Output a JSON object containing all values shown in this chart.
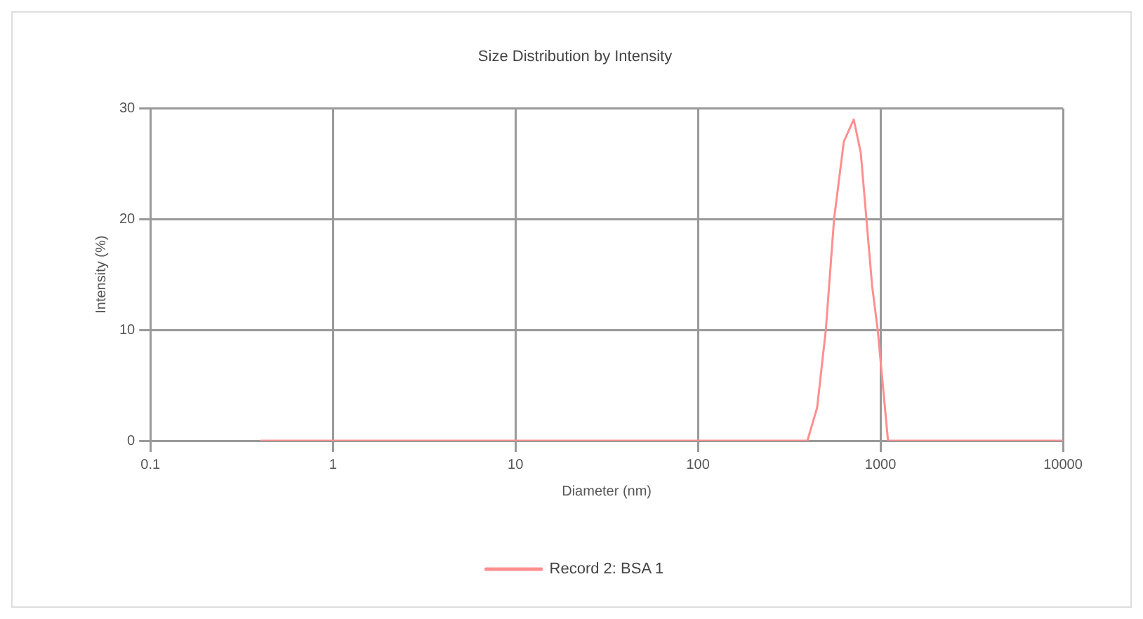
{
  "chart_data": {
    "type": "line",
    "title": "Size Distribution by Intensity",
    "xlabel": "Diameter (nm)",
    "ylabel": "Intensity (%)",
    "series": [
      {
        "name": "Record 2: BSA 1",
        "color": "#ff8f8f",
        "x": [
          0.4,
          1,
          10,
          100,
          300,
          398,
          450,
          502,
          557,
          630,
          714,
          780,
          838,
          900,
          966,
          1100,
          2000,
          10000
        ],
        "values": [
          0,
          0,
          0,
          0,
          0,
          0,
          3,
          10,
          20,
          27,
          29,
          26,
          20,
          14,
          10,
          0,
          0,
          0
        ]
      }
    ],
    "xlim": [
      0.1,
      10000
    ],
    "xticks": [
      0.1,
      1,
      10,
      100,
      1000,
      10000
    ],
    "ylim": [
      0,
      30
    ],
    "yticks": [
      0,
      10,
      20,
      30
    ],
    "log": "x",
    "grid": true,
    "legend": "bottom",
    "marker": "none",
    "line_style": "solid"
  }
}
